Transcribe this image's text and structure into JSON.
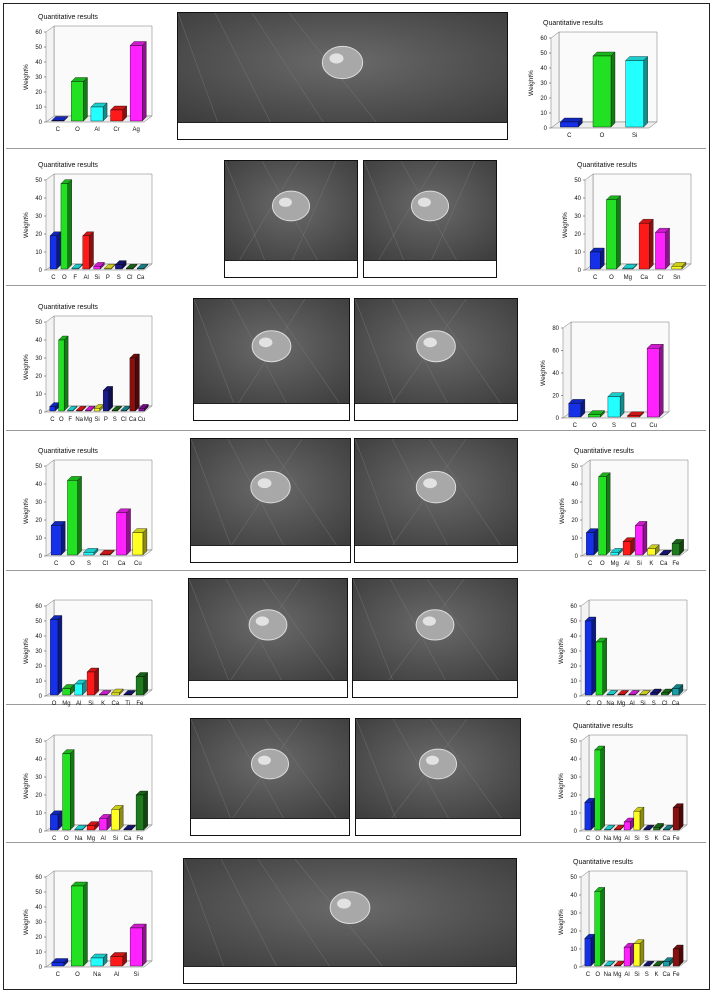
{
  "figure": {
    "chart_title": "Quantitative results",
    "y_axis_label": "Weight%"
  },
  "chart_data": [
    {
      "type": "bar",
      "title": "Quantitative results",
      "ylabel": "Weight%",
      "ylim": [
        0,
        60
      ],
      "categories": [
        "C",
        "O",
        "Al",
        "Cr",
        "Ag"
      ],
      "values": [
        1,
        27,
        10,
        8,
        51
      ],
      "colors": [
        "#1530e8",
        "#22e022",
        "#22ffff",
        "#ff1a1a",
        "#ff22ff"
      ]
    },
    {
      "type": "bar",
      "title": "Quantitative results",
      "ylabel": "Weight%",
      "ylim": [
        0,
        60
      ],
      "categories": [
        "C",
        "O",
        "Si"
      ],
      "values": [
        4,
        48,
        45
      ],
      "colors": [
        "#1530e8",
        "#22e022",
        "#22ffff"
      ]
    },
    {
      "type": "bar",
      "title": "Quantitative results",
      "ylabel": "Weight%",
      "ylim": [
        0,
        50
      ],
      "categories": [
        "C",
        "O",
        "F",
        "Al",
        "Si",
        "P",
        "S",
        "Cl",
        "Ca"
      ],
      "values": [
        19,
        48,
        1,
        19,
        2,
        1,
        3,
        1,
        1
      ],
      "colors": [
        "#1530e8",
        "#22e022",
        "#22ffff",
        "#ff1a1a",
        "#ff22ff",
        "#ffff22",
        "#1a1a8a",
        "#1e7b1e",
        "#18a0a8"
      ]
    },
    {
      "type": "bar",
      "title": "Quantitative results",
      "ylabel": "Weight%",
      "ylim": [
        0,
        50
      ],
      "categories": [
        "C",
        "O",
        "Mg",
        "Ca",
        "Cr",
        "Sn"
      ],
      "values": [
        10,
        39,
        1,
        26,
        21,
        2
      ],
      "colors": [
        "#1530e8",
        "#22e022",
        "#22ffff",
        "#ff1a1a",
        "#ff22ff",
        "#ffff22"
      ]
    },
    {
      "type": "bar",
      "title": "Quantitative results",
      "ylabel": "Weight%",
      "ylim": [
        0,
        50
      ],
      "categories": [
        "C",
        "O",
        "F",
        "Na",
        "Mg",
        "Si",
        "P",
        "S",
        "Cl",
        "Ca",
        "Cu"
      ],
      "values": [
        3,
        40,
        1,
        1,
        1,
        2,
        12,
        1,
        1,
        30,
        2
      ],
      "colors": [
        "#1530e8",
        "#22e022",
        "#22ffff",
        "#ff1a1a",
        "#ff22ff",
        "#ffff22",
        "#1a1a8a",
        "#1e7b1e",
        "#18a0a8",
        "#8a1010",
        "#8a10a0"
      ]
    },
    {
      "type": "bar",
      "title": "",
      "ylabel": "Weight%",
      "ylim": [
        0,
        80
      ],
      "categories": [
        "C",
        "O",
        "S",
        "Cl",
        "Cu"
      ],
      "values": [
        13,
        3,
        19,
        2,
        62
      ],
      "colors": [
        "#1530e8",
        "#22e022",
        "#22ffff",
        "#ff1a1a",
        "#ff22ff"
      ]
    },
    {
      "type": "bar",
      "title": "Quantitative results",
      "ylabel": "Weight%",
      "ylim": [
        0,
        50
      ],
      "categories": [
        "C",
        "O",
        "S",
        "Cl",
        "Ca",
        "Cu"
      ],
      "values": [
        17,
        42,
        2,
        1,
        24,
        13
      ],
      "colors": [
        "#1530e8",
        "#22e022",
        "#22ffff",
        "#ff1a1a",
        "#ff22ff",
        "#ffff22"
      ]
    },
    {
      "type": "bar",
      "title": "Quantitative results",
      "ylabel": "Weight%",
      "ylim": [
        0,
        50
      ],
      "categories": [
        "C",
        "O",
        "Mg",
        "Al",
        "Si",
        "K",
        "Ca",
        "Fe"
      ],
      "values": [
        13,
        44,
        2,
        8,
        17,
        4,
        1,
        7
      ],
      "colors": [
        "#1530e8",
        "#22e022",
        "#22ffff",
        "#ff1a1a",
        "#ff22ff",
        "#ffff22",
        "#1a1a8a",
        "#1e7b1e"
      ]
    },
    {
      "type": "bar",
      "title": "",
      "ylabel": "Weight%",
      "ylim": [
        0,
        60
      ],
      "categories": [
        "O",
        "Mg",
        "Al",
        "Si",
        "K",
        "Ca",
        "Ti",
        "Fe"
      ],
      "values": [
        51,
        5,
        8,
        16,
        1,
        2,
        1,
        13
      ],
      "colors": [
        "#1530e8",
        "#22e022",
        "#22ffff",
        "#ff1a1a",
        "#ff22ff",
        "#ffff22",
        "#1a1a8a",
        "#1e7b1e"
      ]
    },
    {
      "type": "bar",
      "title": "",
      "ylabel": "Weight%",
      "ylim": [
        0,
        60
      ],
      "categories": [
        "C",
        "O",
        "Na",
        "Mg",
        "Al",
        "Si",
        "S",
        "Cl",
        "Ca"
      ],
      "values": [
        50,
        36,
        1,
        1,
        1,
        1,
        2,
        2,
        5
      ],
      "colors": [
        "#1530e8",
        "#22e022",
        "#22ffff",
        "#ff1a1a",
        "#ff22ff",
        "#ffff22",
        "#1a1a8a",
        "#1e7b1e",
        "#18a0a8"
      ]
    },
    {
      "type": "bar",
      "title": "",
      "ylabel": "Weight%",
      "ylim": [
        0,
        50
      ],
      "categories": [
        "C",
        "O",
        "Na",
        "Mg",
        "Al",
        "Si",
        "Ca",
        "Fe"
      ],
      "values": [
        9,
        43,
        1,
        3,
        7,
        12,
        1,
        20
      ],
      "colors": [
        "#1530e8",
        "#22e022",
        "#22ffff",
        "#ff1a1a",
        "#ff22ff",
        "#ffff22",
        "#1a1a8a",
        "#1e7b1e"
      ]
    },
    {
      "type": "bar",
      "title": "Quantitative results",
      "ylabel": "Weight%",
      "ylim": [
        0,
        50
      ],
      "categories": [
        "C",
        "O",
        "Na",
        "Mg",
        "Al",
        "Si",
        "S",
        "K",
        "Ca",
        "Fe"
      ],
      "values": [
        16,
        45,
        1,
        1,
        5,
        11,
        1,
        2,
        1,
        13
      ],
      "colors": [
        "#1530e8",
        "#22e022",
        "#22ffff",
        "#ff1a1a",
        "#ff22ff",
        "#ffff22",
        "#1a1a8a",
        "#1e7b1e",
        "#18a0a8",
        "#8a1010"
      ]
    },
    {
      "type": "bar",
      "title": "",
      "ylabel": "Weight%",
      "ylim": [
        0,
        60
      ],
      "categories": [
        "C",
        "O",
        "Na",
        "Al",
        "Si"
      ],
      "values": [
        3,
        54,
        6,
        7,
        26
      ],
      "colors": [
        "#1530e8",
        "#22e022",
        "#22ffff",
        "#ff1a1a",
        "#ff22ff"
      ]
    },
    {
      "type": "bar",
      "title": "Quantitative results",
      "ylabel": "Weight%",
      "ylim": [
        0,
        50
      ],
      "categories": [
        "C",
        "O",
        "Na",
        "Mg",
        "Al",
        "Si",
        "S",
        "K",
        "Ca",
        "Fe"
      ],
      "values": [
        16,
        42,
        1,
        1,
        11,
        13,
        1,
        1,
        3,
        10
      ],
      "colors": [
        "#1530e8",
        "#22e022",
        "#22ffff",
        "#ff1a1a",
        "#ff22ff",
        "#ffff22",
        "#1a1a8a",
        "#1e7b1e",
        "#18a0a8",
        "#8a1010"
      ]
    }
  ]
}
